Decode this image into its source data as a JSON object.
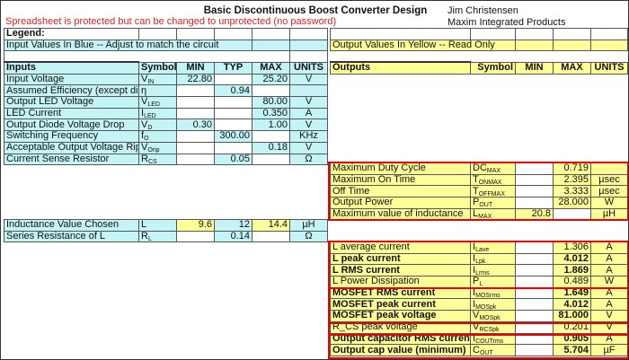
{
  "header": {
    "title": "Basic Discontinuous Boost Converter Design",
    "warning": "Spreadsheet is protected but can be changed to unprotected (no password)",
    "author": "Jim Christensen",
    "company": "Maxim Integrated Products"
  },
  "legend": {
    "title": "Legend:",
    "input_note": "Input Values In Blue -- Adjust to match the circuit",
    "output_note": "Output Values In Yellow -- Read Only"
  },
  "inputs": {
    "headers": [
      "Inputs",
      "Symbol",
      "MIN",
      "TYP",
      "MAX",
      "UNITS"
    ],
    "rows": [
      {
        "label": "Input Voltage",
        "sym": "V",
        "sub": "IN",
        "min": "22.80",
        "typ": "",
        "max": "25.20",
        "units": "V"
      },
      {
        "label": "Assumed Efficiency (except diode",
        "sym": "η",
        "sub": "",
        "min": "",
        "typ": "0.94",
        "max": "",
        "units": ""
      },
      {
        "label": "Output LED Voltage",
        "sym": "V",
        "sub": "LED",
        "min": "",
        "typ": "",
        "max": "80.00",
        "units": "V"
      },
      {
        "label": "LED Current",
        "sym": "I",
        "sub": "LED",
        "min": "",
        "typ": "",
        "max": "0.350",
        "units": "A"
      },
      {
        "label": "Output Diode Voltage Drop",
        "sym": "V",
        "sub": "D",
        "min": "0.30",
        "typ": "",
        "max": "1.00",
        "units": "V"
      },
      {
        "label": "Switching Frequency",
        "sym": "f",
        "sub": "O",
        "min": "",
        "typ": "300.00",
        "max": "",
        "units": "KHz"
      },
      {
        "label": "Acceptable Output Voltage Ripple",
        "sym": "V",
        "sub": "Orip",
        "min": "",
        "typ": "",
        "max": "0.18",
        "units": "V"
      },
      {
        "label": "Current Sense Resistor",
        "sym": "R",
        "sub": "CS",
        "min": "",
        "typ": "0.05",
        "max": "",
        "units": "Ω"
      }
    ]
  },
  "inductor": {
    "rows": [
      {
        "label": "Inductance Value Chosen",
        "sym": "L",
        "sub": "",
        "min": "9.6",
        "typ": "12",
        "max": "14.4",
        "units": "µH"
      },
      {
        "label": "Series Resistance of L",
        "sym": "R",
        "sub": "L",
        "min": "",
        "typ": "0.14",
        "max": "",
        "units": "Ω"
      }
    ]
  },
  "outputs": {
    "headers": [
      "Outputs",
      "Symbol",
      "MIN",
      "MAX",
      "UNITS"
    ],
    "group1": [
      {
        "label": "Maximum Duty Cycle",
        "sym": "DC",
        "sub": "MAX",
        "min": "",
        "max": "0.719",
        "units": "",
        "bold": false
      },
      {
        "label": "Maximum On Time",
        "sym": "T",
        "sub": "ONMAX",
        "min": "",
        "max": "2.395",
        "units": "µsec",
        "bold": false
      },
      {
        "label": "Off Time",
        "sym": "T",
        "sub": "OFFMAX",
        "min": "",
        "max": "3.333",
        "units": "µsec",
        "bold": false
      },
      {
        "label": "Output Power",
        "sym": "P",
        "sub": "OUT",
        "min": "",
        "max": "28.000",
        "units": "W",
        "bold": false
      },
      {
        "label": "Maximum value of inductance",
        "sym": "L",
        "sub": "MAX",
        "min": "20.8",
        "max": "",
        "units": "µH",
        "bold": false
      }
    ],
    "group2": [
      {
        "label": "L average current",
        "sym": "I",
        "sub": "Lave",
        "min": "",
        "max": "1.306",
        "units": "A",
        "bold": false
      },
      {
        "label": "L peak current",
        "sym": "I",
        "sub": "Lpk",
        "min": "",
        "max": "4.012",
        "units": "A",
        "bold": true
      },
      {
        "label": "L RMS current",
        "sym": "I",
        "sub": "Lrms",
        "min": "",
        "max": "1.869",
        "units": "A",
        "bold": true
      },
      {
        "label": "L Power Dissipation",
        "sym": "P",
        "sub": "L",
        "min": "",
        "max": "0.489",
        "units": "W",
        "bold": false
      },
      {
        "label": "MOSFET RMS current",
        "sym": "I",
        "sub": "MOSrms",
        "min": "",
        "max": "1.649",
        "units": "A",
        "bold": true
      },
      {
        "label": "MOSFET peak current",
        "sym": "I",
        "sub": "MOSpk",
        "min": "",
        "max": "4.012",
        "units": "A",
        "bold": true
      },
      {
        "label": "MOSFET peak voltage",
        "sym": "V",
        "sub": "MOSpk",
        "min": "",
        "max": "81.000",
        "units": "V",
        "bold": true
      },
      {
        "label": "R_CS peak voltage",
        "sym": "V",
        "sub": "RCSpk",
        "min": "",
        "max": "0.201",
        "units": "V",
        "bold": false
      },
      {
        "label": "Output capacitor RMS current",
        "sym": "I",
        "sub": "COUTrms",
        "min": "",
        "max": "0.905",
        "units": "A",
        "bold": true
      },
      {
        "label": "Output cap value (minimum)",
        "sym": "C",
        "sub": "OUT",
        "min": "",
        "max": "5.704",
        "units": "µF",
        "bold": true
      }
    ]
  },
  "colors": {
    "input": "#c4f4f6",
    "output": "#ffff99",
    "highlight": "#e00000",
    "warning": "#e02020"
  }
}
